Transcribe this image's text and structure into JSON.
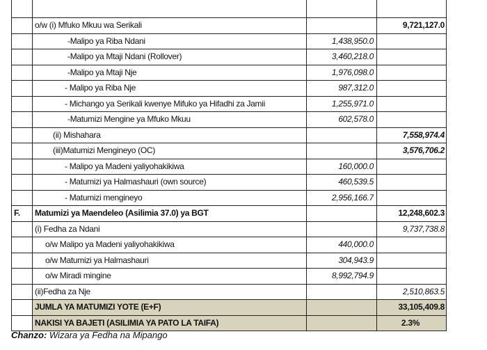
{
  "table": {
    "rows": [
      {},
      {
        "text": "o/w (i) Mfuko Mkuu wa Serikali",
        "total": "9,721,127.0"
      },
      {
        "text": "-Malipo ya Riba Ndani",
        "amount": "1,438,950.0"
      },
      {
        "text": "-Malipo ya Mtaji Ndani (Rollover)",
        "amount": "3,460,218.0"
      },
      {
        "text": "-Malipo ya Mtaji Nje",
        "amount": "1,976,098.0"
      },
      {
        "text": "- Malipo ya Riba Nje",
        "amount": "987,312.0"
      },
      {
        "text": "- Michango ya Serikali kwenye Mifuko ya Hifadhi za Jamii",
        "amount": "1,255,971.0"
      },
      {
        "text": "-Matumizi Mengine ya Mfuko Mkuu",
        "amount": "602,578.0"
      },
      {
        "text": "(ii) Mishahara",
        "total": "7,558,974.4"
      },
      {
        "text": "(iii)Matumizi Mengineyo (OC)",
        "total": "3,576,706.2"
      },
      {
        "text": "- Malipo ya Madeni yaliyohakikiwa",
        "amount": "160,000.0"
      },
      {
        "text": "- Matumizi ya Halmashauri (own source)",
        "amount": "460,539.5"
      },
      {
        "text": "- Matumizi mengineyo",
        "amount": "2,956,166.7"
      },
      {
        "marker": "F.",
        "text": "Matumizi ya Maendeleo (Asilimia 37.0) ya BGT",
        "total": "12,248,602.3"
      },
      {
        "text": "(i) Fedha za Ndani",
        "total": "9,737,738.8"
      },
      {
        "text": "o/w Malipo ya Madeni yaliyohakikiwa",
        "amount": "440,000.0"
      },
      {
        "text": "o/w Matumizi ya Halmashauri",
        "amount": "304,943.9"
      },
      {
        "text": "o/w Miradi mingine",
        "amount": "8,992,794.9"
      },
      {
        "text": "(ii)Fedha za Nje",
        "total": "2,510,863.5"
      },
      {
        "text": "JUMLA YA MATUMIZI YOTE (E+F)",
        "total": "33,105,409.8"
      },
      {
        "text": "NAKISI YA BAJETI (ASILIMIA YA PATO LA TAIFA)",
        "total": "2.3%"
      }
    ]
  },
  "caption": {
    "label": "Chanzo:",
    "text": "Wizara  ya Fedha na Mipango"
  }
}
